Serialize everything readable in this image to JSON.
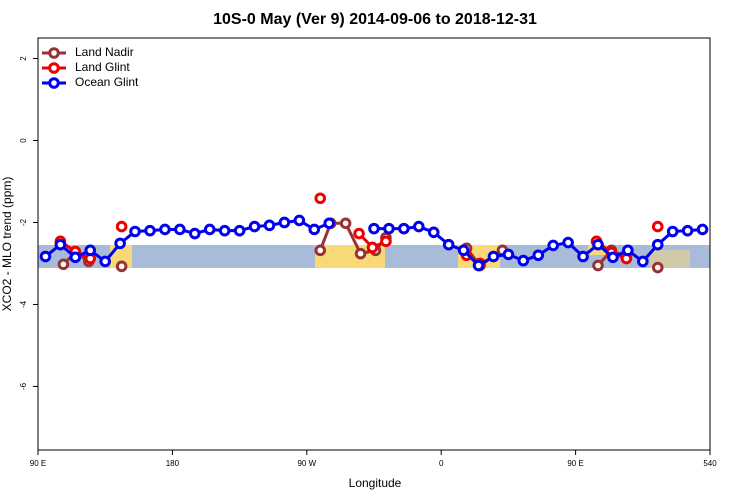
{
  "chart_data": {
    "type": "line",
    "title": "10S-0 May (Ver 9)   2014-09-06 to 2018-12-31",
    "x_label": "Longitude",
    "y_label": "XCO2 - MLO trend (ppm)",
    "xlim": [
      90,
      540
    ],
    "ylim": [
      -7.55,
      2.5
    ],
    "xticks": [
      {
        "value": 90,
        "label": "90 E"
      },
      180,
      {
        "value": 270,
        "label": "90 W"
      },
      {
        "value": 360,
        "label": "0"
      },
      {
        "value": 450,
        "label": "90 E"
      },
      540
    ],
    "yticks": [
      2,
      0,
      -2,
      -4,
      -6
    ],
    "grid": false,
    "legend": "top-left",
    "series": [
      {
        "name": "Land Nadir",
        "color": "#993333",
        "x": [
          107,
          115,
          124,
          135,
          146,
          212,
          279,
          286,
          296,
          306,
          316,
          323,
          350,
          377,
          386,
          401,
          433,
          465,
          474,
          484,
          495,
          505
        ],
        "values": [
          -3.02,
          -2.73,
          -2.95,
          null,
          -3.07,
          null,
          -2.68,
          -2.02,
          -2.02,
          -2.76,
          -2.68,
          -2.37,
          null,
          -2.63,
          -3.05,
          -2.68,
          null,
          -3.05,
          -2.68,
          -2.85,
          null,
          -3.1
        ]
      },
      {
        "name": "Land Glint",
        "color": "#ee0000",
        "x": [
          105,
          115,
          125,
          135,
          146,
          212,
          279,
          292,
          305,
          314,
          323,
          350,
          377,
          386,
          425,
          464,
          474,
          484,
          495,
          505
        ],
        "values": [
          -2.46,
          -2.71,
          -2.88,
          null,
          -2.1,
          null,
          -1.41,
          null,
          -2.27,
          -2.61,
          -2.46,
          null,
          -2.8,
          -3.0,
          null,
          -2.46,
          -2.73,
          -2.88,
          null,
          -2.1
        ]
      },
      {
        "name": "Ocean Glint",
        "color": "#0000ee",
        "x": [
          95,
          105,
          115,
          125,
          135,
          145,
          155,
          165,
          175,
          185,
          195,
          205,
          215,
          225,
          235,
          245,
          255,
          265,
          275,
          285,
          295,
          305,
          315,
          325,
          335,
          345,
          355,
          365,
          375,
          385,
          395,
          405,
          415,
          425,
          435,
          445,
          455,
          465,
          475,
          485,
          495,
          505,
          515,
          525,
          535
        ],
        "values": [
          -2.83,
          -2.54,
          -2.85,
          -2.68,
          -2.95,
          -2.51,
          -2.22,
          -2.2,
          -2.17,
          -2.17,
          -2.27,
          -2.17,
          -2.2,
          -2.2,
          -2.1,
          -2.07,
          -2.0,
          -1.95,
          -2.17,
          -2.02,
          null,
          null,
          -2.15,
          -2.15,
          -2.15,
          -2.1,
          -2.24,
          -2.54,
          -2.68,
          -3.05,
          -2.83,
          -2.78,
          -2.93,
          -2.8,
          -2.56,
          -2.49,
          -2.83,
          -2.54,
          -2.85,
          -2.68,
          -2.95,
          -2.54,
          -2.22,
          -2.2,
          -2.17
        ]
      }
    ]
  }
}
